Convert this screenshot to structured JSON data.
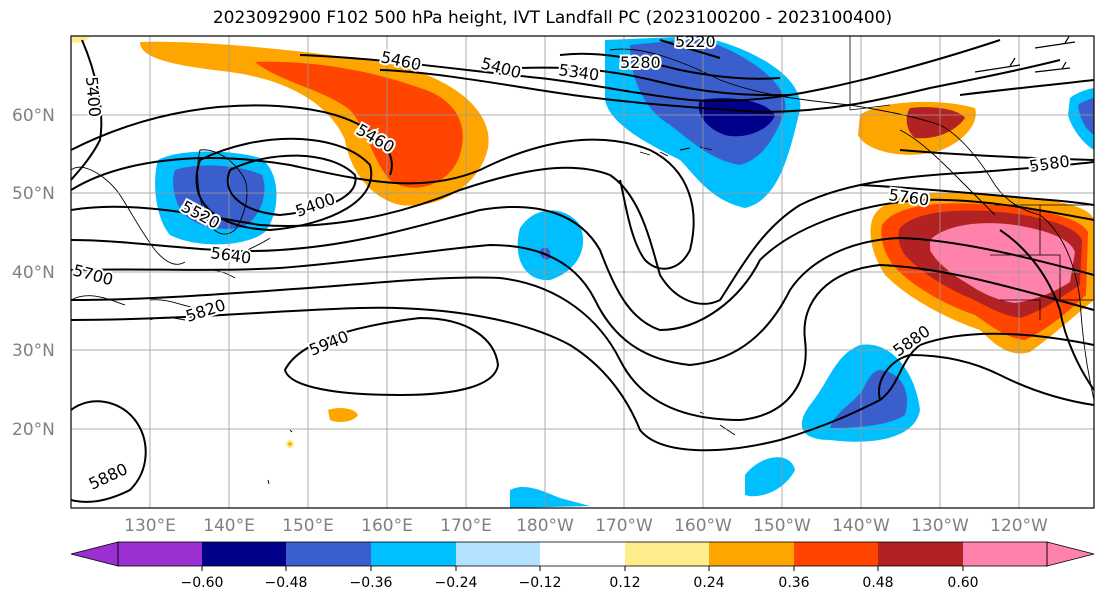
{
  "title": "2023092900 F102 500 hPa height, IVT Landfall PC (2023100200 - 2023100400)",
  "lat_labels": [
    "60°N",
    "50°N",
    "40°N",
    "30°N",
    "20°N"
  ],
  "lon_labels": [
    "130°E",
    "140°E",
    "150°E",
    "160°E",
    "170°E",
    "180°W",
    "170°W",
    "160°W",
    "150°W",
    "140°W",
    "130°W",
    "120°W"
  ],
  "contour_labels": [
    "5400",
    "5460",
    "5400",
    "5340",
    "5280",
    "5220",
    "5460",
    "5400",
    "5520",
    "5640",
    "5700",
    "5820",
    "5940",
    "5760",
    "5580",
    "5880",
    "5880"
  ],
  "colorbar": {
    "ticks": [
      "−0.60",
      "−0.48",
      "−0.36",
      "−0.24",
      "−0.12",
      "0.12",
      "0.24",
      "0.36",
      "0.48",
      "0.60"
    ],
    "colors": [
      "#9b30d0",
      "#00008b",
      "#3a5fcd",
      "#00bfff",
      "#b2e2ff",
      "#ffffff",
      "#ffec8b",
      "#ffa500",
      "#ff4500",
      "#b22222",
      "#ff82ab",
      "#ff82ab"
    ]
  },
  "colors": {
    "pink": "#ff82ab",
    "darkred": "#b22222",
    "orangered": "#ff4500",
    "orange": "#ffa500",
    "yellow": "#ffec8b",
    "lightblue": "#b2e2ff",
    "deepsky": "#00bfff",
    "royal": "#3a5fcd",
    "navy": "#00008b"
  }
}
